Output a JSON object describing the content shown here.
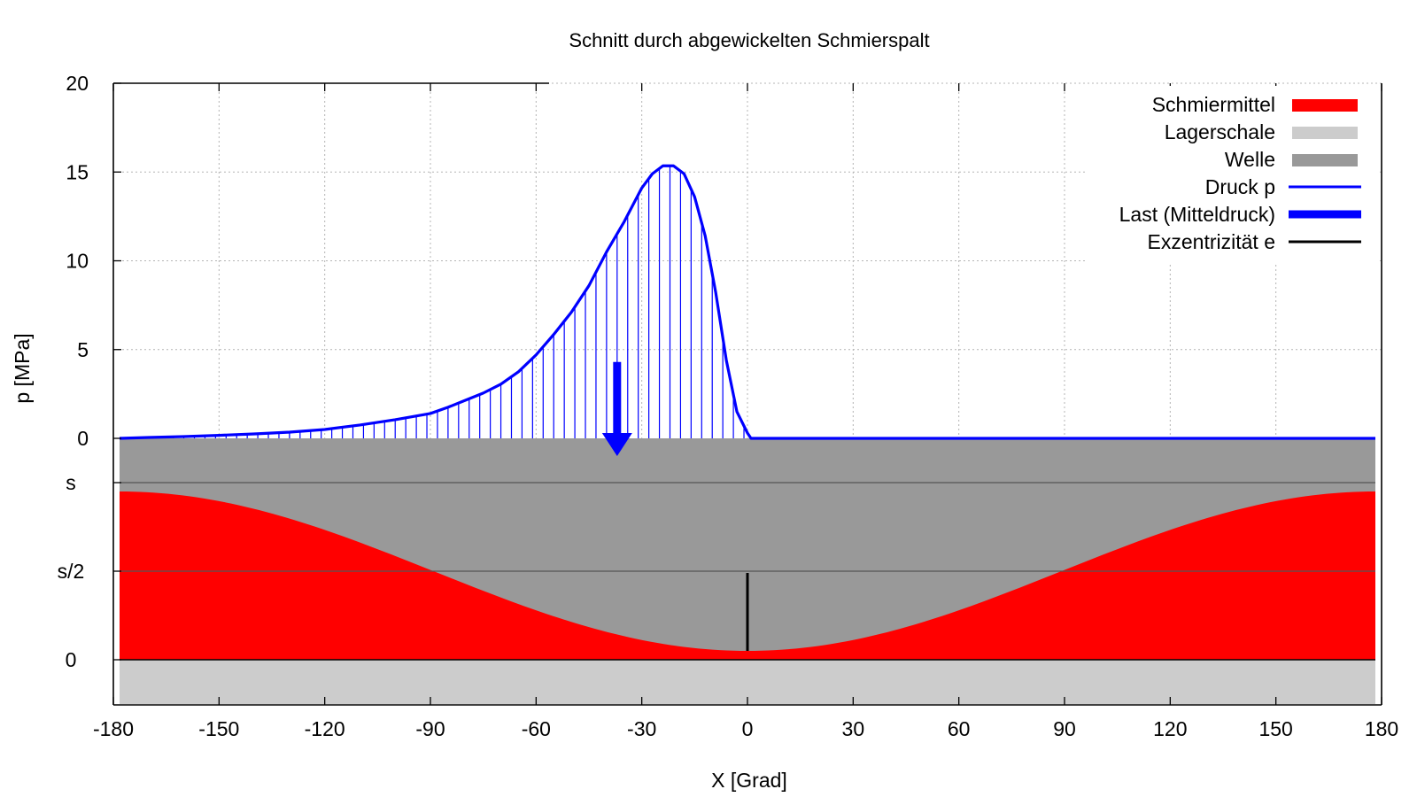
{
  "chart_data": {
    "type": "line",
    "title": "Schnitt durch abgewickelten Schmierspalt",
    "xlabel": "X [Grad]",
    "ylabel": "p [MPa]",
    "xlim": [
      -180,
      180
    ],
    "ylim": [
      0,
      20
    ],
    "x_ticks": [
      "-180",
      "-150",
      "-120",
      "-90",
      "-60",
      "-30",
      "0",
      "30",
      "60",
      "90",
      "120",
      "150",
      "180"
    ],
    "y_ticks": [
      "0",
      "5",
      "10",
      "15",
      "20"
    ],
    "gap_ticks": [
      "s",
      "s/2",
      "0"
    ],
    "grid": true,
    "legend_position": "top-right",
    "legend": [
      {
        "label": "Schmiermittel",
        "color": "#ff0000",
        "kind": "box"
      },
      {
        "label": "Lagerschale",
        "color": "#cccccc",
        "kind": "box"
      },
      {
        "label": "Welle",
        "color": "#999999",
        "kind": "box"
      },
      {
        "label": "Druck p",
        "color": "#0000ff",
        "kind": "line"
      },
      {
        "label": "Last (Mitteldruck)",
        "color": "#0000ff",
        "kind": "thick-line"
      },
      {
        "label": "Exzentrizität e",
        "color": "#000000",
        "kind": "line"
      }
    ],
    "series": [
      {
        "name": "Druck p",
        "color": "#0000ff",
        "x": [
          -180,
          -170,
          -160,
          -150,
          -140,
          -130,
          -120,
          -110,
          -100,
          -90,
          -85,
          -80,
          -75,
          -70,
          -65,
          -60,
          -55,
          -50,
          -45,
          -40,
          -35,
          -30,
          -27,
          -24,
          -21,
          -18,
          -15,
          -12,
          -9,
          -6,
          -3,
          0,
          1,
          10,
          30,
          60,
          90,
          120,
          150,
          180
        ],
        "y": [
          0,
          0.05,
          0.1,
          0.17,
          0.25,
          0.35,
          0.5,
          0.75,
          1.05,
          1.4,
          1.75,
          2.15,
          2.55,
          3.05,
          3.75,
          4.7,
          5.85,
          7.1,
          8.6,
          10.5,
          12.2,
          14.1,
          14.9,
          15.35,
          15.35,
          14.9,
          13.6,
          11.4,
          8.2,
          4.4,
          1.5,
          0.3,
          0,
          0,
          0,
          0,
          0,
          0,
          0,
          0
        ]
      }
    ],
    "gap": {
      "name": "Schmiermittel",
      "relative_clearance": 1,
      "eccentricity_ratio": 0.9,
      "min_gap_angle": 0
    },
    "load": {
      "name": "Last (Mitteldruck)",
      "x": -37,
      "value": 4.3
    },
    "eccentricity_marker": {
      "name": "Exzentrizität e",
      "x": 0
    },
    "colors": {
      "lubricant": "#ff0000",
      "bearing_shell": "#cccccc",
      "shaft": "#999999",
      "pressure": "#0000ff",
      "eccentricity": "#000000",
      "grid": "#b4b4b4"
    }
  }
}
